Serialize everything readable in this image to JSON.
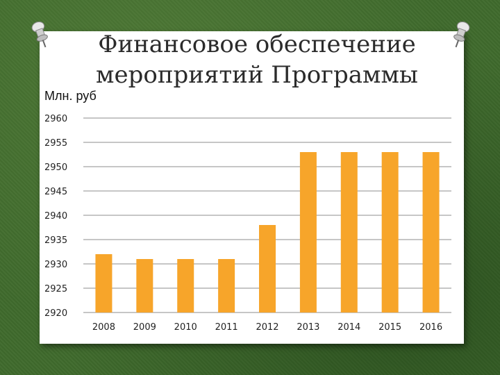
{
  "slide": {
    "title_line1": "Финансовое обеспечение",
    "title_line2": "мероприятий Программы",
    "unit_label": "Млн. руб"
  },
  "colors": {
    "bar": "#F7A52A",
    "grid": "#8c8c8c",
    "background": "#3f6a2c",
    "card": "#ffffff"
  },
  "chart_data": {
    "type": "bar",
    "title": "Финансовое обеспечение мероприятий Программы",
    "ylabel": "Млн. руб",
    "xlabel": "",
    "categories": [
      "2008",
      "2009",
      "2010",
      "2011",
      "2012",
      "2013",
      "2014",
      "2015",
      "2016"
    ],
    "values": [
      2932,
      2931,
      2931,
      2931,
      2938,
      2953,
      2953,
      2953,
      2953
    ],
    "ylim": [
      2920,
      2960
    ],
    "yticks": [
      2960,
      2955,
      2950,
      2945,
      2940,
      2935,
      2930,
      2925,
      2920
    ],
    "grid": true,
    "legend": "none"
  }
}
